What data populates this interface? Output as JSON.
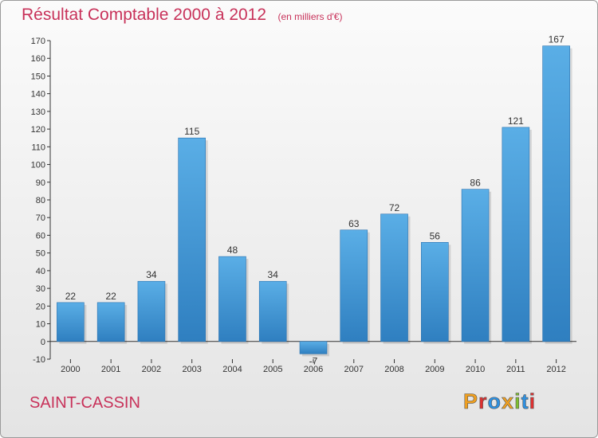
{
  "title": "Résultat Comptable 2000 à 2012",
  "unit": "(en milliers d'€)",
  "commune": "SAINT-CASSIN",
  "brand": {
    "text": "Proxiti",
    "letter_colors": [
      "#f0a020",
      "#e03030",
      "#2e90e0",
      "#f0a020",
      "#80c030",
      "#2e90e0",
      "#e03030"
    ]
  },
  "colors": {
    "bar_top": "#5aaee6",
    "bar_bottom": "#2f7fc0",
    "title": "#c8325a"
  },
  "chart_data": {
    "type": "bar",
    "title": "Résultat Comptable 2000 à 2012",
    "xlabel": "",
    "ylabel": "",
    "categories": [
      "2000",
      "2001",
      "2002",
      "2003",
      "2004",
      "2005",
      "2006",
      "2007",
      "2008",
      "2009",
      "2010",
      "2011",
      "2012"
    ],
    "values": [
      22,
      22,
      34,
      115,
      48,
      34,
      -7,
      63,
      72,
      56,
      86,
      121,
      167
    ],
    "value_labels": [
      "22",
      "22",
      "34",
      "115",
      "48",
      "34",
      "-7",
      "63",
      "72",
      "56",
      "86",
      "121",
      "167"
    ],
    "ylim": [
      -10,
      170
    ],
    "yticks": [
      -10,
      0,
      10,
      20,
      30,
      40,
      50,
      60,
      70,
      80,
      90,
      100,
      110,
      120,
      130,
      140,
      150,
      160,
      170
    ],
    "grid": false
  }
}
